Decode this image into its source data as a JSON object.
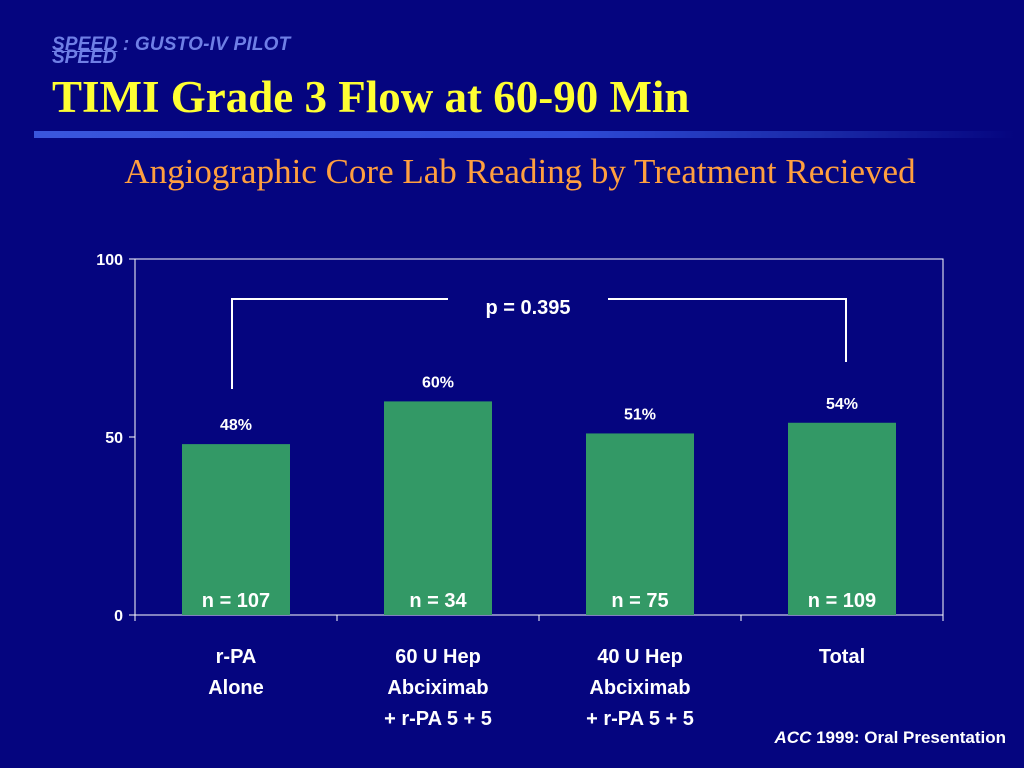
{
  "slide": {
    "header_speed": "SPEED",
    "header_rest": " : GUSTO-IV PILOT",
    "header_speed2": "SPEED",
    "title": "TIMI Grade 3 Flow at 60-90 Min",
    "subtitle": "Angiographic Core Lab Reading by Treatment Recieved",
    "citation_source": "ACC",
    "citation_rest": " 1999: Oral Presentation"
  },
  "colors": {
    "background": "#05057f",
    "title": "#ffff33",
    "subtitle": "#ff9f3f",
    "bar": "#339966",
    "text": "#ffffff"
  },
  "chart_data": {
    "type": "bar",
    "categories": [
      [
        "r-PA",
        "Alone"
      ],
      [
        "60 U Hep",
        "Abciximab",
        "+ r-PA 5 + 5"
      ],
      [
        "40 U Hep",
        "Abciximab",
        "+ r-PA 5 + 5"
      ],
      [
        "Total"
      ]
    ],
    "values": [
      48,
      60,
      51,
      54
    ],
    "value_labels": [
      "48%",
      "60%",
      "51%",
      "54%"
    ],
    "n_labels": [
      "n = 107",
      "n = 34",
      "n = 75",
      "n = 109"
    ],
    "ylim": [
      0,
      100
    ],
    "yticks": [
      "0",
      "50",
      "100"
    ],
    "ytick_values": [
      0,
      50,
      100
    ],
    "annotation": "p = 0.395",
    "bracket_between": [
      0,
      3
    ],
    "grid": false,
    "legend": "none"
  }
}
